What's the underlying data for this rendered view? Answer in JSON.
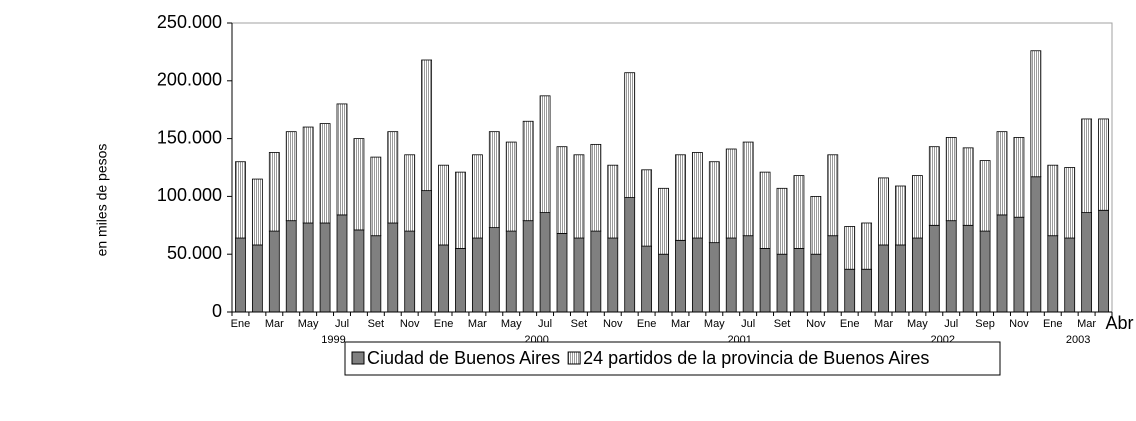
{
  "chart_data": {
    "type": "stacked-bar",
    "y_label": "en miles de pesos",
    "categories": [
      "Ene",
      null,
      "Mar",
      null,
      "May",
      null,
      "Jul",
      null,
      "Set",
      null,
      "Nov",
      null,
      "Ene",
      null,
      "Mar",
      null,
      "May",
      null,
      "Jul",
      null,
      "Set",
      null,
      "Nov",
      null,
      "Ene",
      null,
      "Mar",
      null,
      "May",
      null,
      "Jul",
      null,
      "Set",
      null,
      "Nov",
      null,
      "Ene",
      null,
      "Mar",
      null,
      "May",
      null,
      "Jul",
      null,
      "Sep",
      null,
      "Nov",
      null,
      "Ene",
      null,
      "Mar",
      "Abr"
    ],
    "years": [
      "1999",
      "2000",
      "2001",
      "2002",
      "2003"
    ],
    "series": [
      {
        "name": "Ciudad de Buenos Aires",
        "color": "#808080",
        "values": [
          64000,
          58000,
          70000,
          79000,
          77000,
          77000,
          84000,
          71000,
          66000,
          77000,
          70000,
          105000,
          58000,
          55000,
          64000,
          73000,
          70000,
          79000,
          86000,
          68000,
          64000,
          70000,
          64000,
          99000,
          57000,
          50000,
          62000,
          64000,
          60000,
          64000,
          66000,
          55000,
          50000,
          55000,
          50000,
          66000,
          37000,
          37000,
          58000,
          58000,
          64000,
          75000,
          79000,
          75000,
          70000,
          84000,
          82000,
          117000,
          66000,
          64000,
          86000,
          88000
        ]
      },
      {
        "name": "24 partidos de la provincia de Buenos Aires",
        "color": "#ffffff",
        "pattern": "vertical-lines",
        "values": [
          66000,
          57000,
          68000,
          77000,
          83000,
          86000,
          96000,
          79000,
          68000,
          79000,
          66000,
          113000,
          69000,
          66000,
          72000,
          83000,
          77000,
          86000,
          101000,
          75000,
          72000,
          75000,
          63000,
          108000,
          66000,
          57000,
          74000,
          74000,
          70000,
          77000,
          81000,
          66000,
          57000,
          63000,
          50000,
          70000,
          37000,
          40000,
          58000,
          51000,
          54000,
          68000,
          72000,
          67000,
          61000,
          72000,
          69000,
          109000,
          61000,
          61000,
          81000,
          79000
        ]
      }
    ],
    "ylim": [
      0,
      250000
    ],
    "yticks": [
      0,
      {
        "value": 50000,
        "label": "50.000"
      },
      {
        "value": 100000,
        "label": "100.000"
      },
      {
        "value": 150000,
        "label": "150.000"
      },
      {
        "value": 200000,
        "label": "200.000"
      },
      {
        "value": 250000,
        "label": "250.000"
      }
    ],
    "legend": "bottom"
  }
}
